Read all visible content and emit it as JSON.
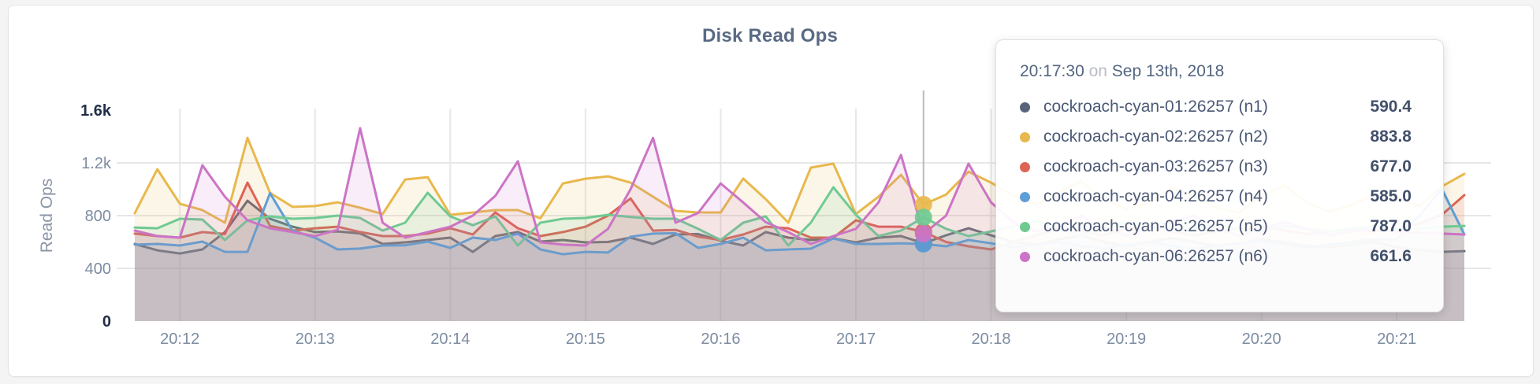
{
  "page": {
    "background": "#f4f4f5"
  },
  "header": {
    "title": "Disk Read Ops"
  },
  "tooltip": {
    "time": "20:17:30",
    "conjunction": "on",
    "date": "Sep 13th, 2018",
    "rows": [
      {
        "name": "cockroach-cyan-01:26257 (n1)",
        "value": "590.4",
        "color": "#586479"
      },
      {
        "name": "cockroach-cyan-02:26257 (n2)",
        "value": "883.8",
        "color": "#e8b84d"
      },
      {
        "name": "cockroach-cyan-03:26257 (n3)",
        "value": "677.0",
        "color": "#dc6454"
      },
      {
        "name": "cockroach-cyan-04:26257 (n4)",
        "value": "585.0",
        "color": "#5e9ed6"
      },
      {
        "name": "cockroach-cyan-05:26257 (n5)",
        "value": "787.0",
        "color": "#6fca92"
      },
      {
        "name": "cockroach-cyan-06:26257 (n6)",
        "value": "661.6",
        "color": "#cc74c6"
      }
    ]
  },
  "chart_data": {
    "type": "area",
    "title": "Disk Read Ops",
    "ylabel": "Read Ops",
    "xlabel": "",
    "ylim": [
      0,
      1600
    ],
    "grid": "on",
    "x_start": "20:11:40",
    "x_step_seconds": 10,
    "x_ticks": [
      "20:12",
      "20:13",
      "20:14",
      "20:15",
      "20:16",
      "20:17",
      "20:18",
      "20:19",
      "20:20",
      "20:21"
    ],
    "y_ticks": [
      {
        "label": "1.6k",
        "value": 1600,
        "strong": true,
        "grid": false
      },
      {
        "label": "1.2k",
        "value": 1200,
        "strong": false,
        "grid": true
      },
      {
        "label": "800",
        "value": 800,
        "strong": false,
        "grid": true
      },
      {
        "label": "400",
        "value": 400,
        "strong": false,
        "grid": true
      },
      {
        "label": "0",
        "value": 0,
        "strong": true,
        "grid": false
      }
    ],
    "hover": {
      "time": "20:17:30",
      "index": 35
    },
    "colors": {
      "grid": "#e7e7e7",
      "hover_line": "#bbbbbb",
      "tick": "#7d8ca1",
      "tick_strong": "#232f49"
    },
    "series": [
      {
        "name": "cockroach-cyan-01:26257 (n1)",
        "node": "n1",
        "color": "#586479",
        "values": [
          585,
          537,
          513,
          543,
          675,
          913,
          776,
          716,
          675,
          680,
          665,
          585,
          597,
          615,
          633,
          525,
          645,
          675,
          603,
          615,
          597,
          600,
          633,
          585,
          657,
          660,
          610,
          573,
          675,
          633,
          615,
          627,
          597,
          633,
          645,
          590.4,
          650,
          704,
          650,
          600,
          580,
          620,
          650,
          600,
          570,
          600,
          630,
          600,
          570,
          590,
          620,
          600,
          570,
          560,
          580,
          600,
          560,
          540,
          525,
          531
        ]
      },
      {
        "name": "cockroach-cyan-02:26257 (n2)",
        "node": "n2",
        "color": "#e8b84d",
        "values": [
          818,
          1152,
          890,
          842,
          746,
          1390,
          973,
          866,
          872,
          901,
          860,
          812,
          1074,
          1092,
          806,
          824,
          842,
          842,
          780,
          1044,
          1080,
          1098,
          1050,
          943,
          836,
          824,
          824,
          1081,
          925,
          746,
          1164,
          1194,
          812,
          943,
          1110,
          883.8,
          960,
          1134,
          1050,
          950,
          880,
          980,
          1060,
          920,
          850,
          900,
          1010,
          950,
          860,
          820,
          950,
          1030,
          900,
          830,
          880,
          960,
          940,
          870,
          1021,
          1117
        ]
      },
      {
        "name": "cockroach-cyan-03:26257 (n3)",
        "node": "n3",
        "color": "#dc6454",
        "values": [
          663,
          645,
          633,
          675,
          660,
          1050,
          722,
          686,
          704,
          716,
          675,
          645,
          645,
          663,
          704,
          657,
          824,
          704,
          645,
          675,
          716,
          800,
          930,
          686,
          692,
          640,
          615,
          657,
          716,
          704,
          633,
          633,
          764,
          716,
          716,
          677,
          600,
          567,
          543,
          600,
          650,
          700,
          680,
          650,
          700,
          720,
          680,
          650,
          680,
          700,
          720,
          690,
          660,
          680,
          700,
          680,
          700,
          740,
          806,
          955
        ]
      },
      {
        "name": "cockroach-cyan-04:26257 (n4)",
        "node": "n4",
        "color": "#5e9ed6",
        "values": [
          580,
          585,
          573,
          603,
          525,
          525,
          970,
          686,
          633,
          543,
          550,
          573,
          575,
          603,
          555,
          633,
          615,
          663,
          543,
          507,
          525,
          520,
          640,
          663,
          666,
          555,
          585,
          633,
          537,
          543,
          549,
          627,
          585,
          585,
          590,
          585,
          567,
          615,
          590,
          560,
          580,
          600,
          570,
          550,
          580,
          600,
          570,
          550,
          570,
          590,
          610,
          580,
          560,
          580,
          600,
          620,
          620,
          800,
          1003,
          657
        ]
      },
      {
        "name": "cockroach-cyan-05:26257 (n5)",
        "node": "n5",
        "color": "#6fca92",
        "values": [
          710,
          704,
          776,
          770,
          615,
          764,
          794,
          776,
          782,
          800,
          782,
          686,
          746,
          973,
          794,
          727,
          794,
          573,
          746,
          776,
          782,
          806,
          790,
          776,
          777,
          700,
          615,
          746,
          794,
          573,
          746,
          1015,
          806,
          645,
          686,
          787,
          700,
          645,
          680,
          720,
          760,
          700,
          650,
          700,
          750,
          720,
          680,
          700,
          730,
          700,
          680,
          720,
          700,
          680,
          700,
          720,
          700,
          700,
          716,
          722
        ]
      },
      {
        "name": "cockroach-cyan-06:26257 (n6)",
        "node": "n6",
        "color": "#cc74c6",
        "values": [
          686,
          645,
          633,
          1182,
          943,
          764,
          704,
          675,
          645,
          692,
          1463,
          746,
          633,
          675,
          716,
          800,
          950,
          1212,
          597,
          580,
          573,
          700,
          1000,
          1390,
          746,
          820,
          1044,
          900,
          750,
          675,
          585,
          645,
          700,
          900,
          1260,
          661.6,
          800,
          1194,
          900,
          750,
          680,
          720,
          800,
          700,
          650,
          700,
          750,
          800,
          700,
          650,
          700,
          750,
          700,
          650,
          680,
          700,
          680,
          670,
          663,
          657
        ]
      }
    ]
  }
}
